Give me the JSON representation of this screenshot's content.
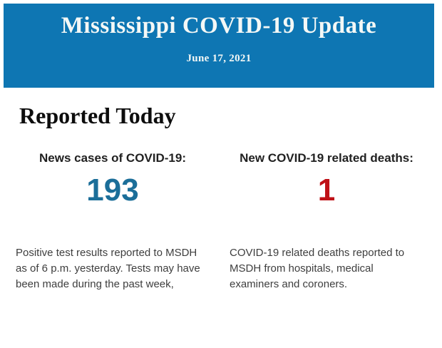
{
  "banner": {
    "title": "Mississippi COVID-19 Update",
    "date": "June 17, 2021",
    "background_color": "#0e76b3",
    "text_color": "#f4f8f6"
  },
  "section": {
    "heading": "Reported Today"
  },
  "stats": {
    "cases": {
      "label": "News cases of COVID-19:",
      "value": "193",
      "value_color": "#1b6e99",
      "description": "Positive test results reported to MSDH as of 6 p.m. yesterday. Tests may have been made during the past week,"
    },
    "deaths": {
      "label": "New COVID-19 related deaths:",
      "value": "1",
      "value_color": "#bf1117",
      "description": "COVID-19 related deaths reported to MSDH from hospitals, medical examiners and coroners."
    }
  }
}
